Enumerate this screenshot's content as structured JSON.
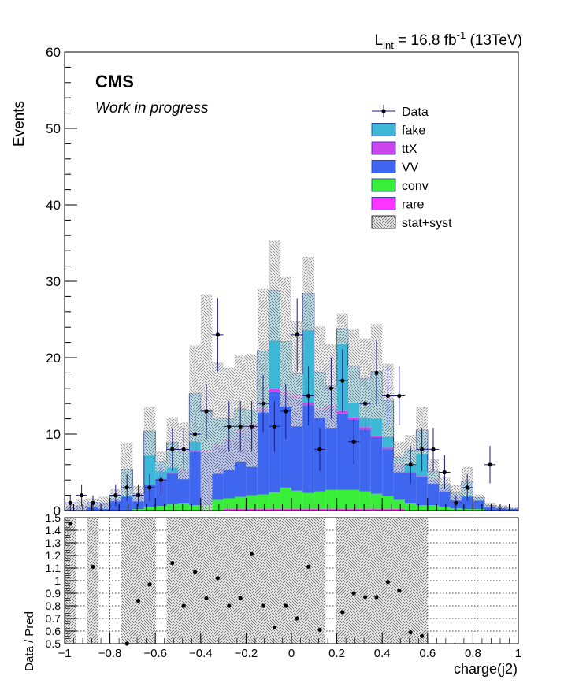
{
  "header": {
    "lumi_prefix": "L",
    "lumi_sub": "int",
    "lumi_value": " = 16.8 fb",
    "lumi_exp": "-1",
    "lumi_energy": " (13TeV)"
  },
  "labels": {
    "cms": "CMS",
    "work": "Work in progress",
    "ylabel_top": "Events",
    "ylabel_bottom": "Data / Pred",
    "xlabel": "charge(j2)"
  },
  "legend": [
    {
      "key": "data",
      "label": "Data"
    },
    {
      "key": "fake",
      "label": "fake",
      "color": "#3cb7d6"
    },
    {
      "key": "ttX",
      "label": "ttX",
      "color": "#cc44ee"
    },
    {
      "key": "VV",
      "label": "VV",
      "color": "#3f66ee"
    },
    {
      "key": "conv",
      "label": "conv",
      "color": "#39ee39"
    },
    {
      "key": "rare",
      "label": "rare",
      "color": "#ff33ff"
    },
    {
      "key": "syst",
      "label": "stat+syst",
      "color": "#aaaaaa"
    }
  ],
  "chart_data": [
    {
      "type": "bar",
      "stacked": true,
      "xlim": [
        -1,
        1
      ],
      "ylim": [
        0,
        60
      ],
      "bins": 40,
      "x_ticks": [
        -1,
        -0.8,
        -0.6,
        -0.4,
        -0.2,
        0,
        0.2,
        0.4,
        0.6,
        0.8,
        1
      ],
      "y_ticks": [
        0,
        10,
        20,
        30,
        40,
        50,
        60
      ],
      "ylabel": "Events",
      "series": [
        {
          "name": "rare",
          "values": [
            0,
            0,
            0,
            0,
            0,
            0,
            0,
            0.1,
            0.1,
            0.1,
            0.1,
            0.1,
            0.1,
            0.1,
            0.2,
            0.2,
            0.2,
            0.2,
            0.2,
            0.2,
            0.2,
            0.2,
            0.2,
            0.2,
            0.2,
            0.2,
            0.2,
            0.2,
            0.2,
            0.2,
            0.1,
            0.1,
            0.1,
            0.1,
            0,
            0,
            0,
            0,
            0,
            0
          ]
        },
        {
          "name": "conv",
          "values": [
            0,
            0,
            0,
            0,
            0,
            0,
            0.2,
            0.4,
            0.5,
            0.7,
            0.8,
            0.6,
            0.6,
            1.3,
            1.4,
            1.6,
            1.8,
            1.9,
            2.2,
            2.8,
            2.4,
            2.1,
            2.3,
            2.5,
            2.5,
            2.5,
            2.3,
            2.0,
            1.7,
            1.2,
            0.8,
            0.6,
            0.6,
            0.4,
            0.3,
            0.2,
            0.2,
            0,
            0,
            0
          ]
        },
        {
          "name": "VV",
          "values": [
            0.5,
            0.6,
            0.8,
            1.0,
            1.5,
            1.8,
            2.0,
            2.8,
            3.5,
            4.0,
            4.3,
            7.0,
            7.0,
            7.0,
            7.6,
            8.5,
            9.0,
            11.0,
            13.1,
            12.2,
            12.2,
            11.5,
            10.7,
            10.8,
            10.0,
            9.2,
            8.1,
            7.4,
            6.1,
            4.5,
            4.0,
            3.7,
            3.4,
            2.4,
            1.7,
            1.6,
            1.1,
            0.7,
            0.5,
            0.3
          ]
        },
        {
          "name": "ttX",
          "values": [
            0,
            0,
            0,
            0,
            0,
            0,
            0,
            0.1,
            0.1,
            0.1,
            0.1,
            0.1,
            0.2,
            0.2,
            0.2,
            0.3,
            0.3,
            0.3,
            0.4,
            0.4,
            0.4,
            0.3,
            0.3,
            0.3,
            0.3,
            0.3,
            0.3,
            0.2,
            0.2,
            0.2,
            0.1,
            0.1,
            0.1,
            0.1,
            0,
            0,
            0,
            0,
            0,
            0
          ]
        },
        {
          "name": "fake",
          "values": [
            0,
            0,
            0.2,
            0,
            0.5,
            3.6,
            0,
            7.0,
            2.2,
            4.0,
            2.5,
            7.5,
            5.2,
            3.5,
            2.6,
            2.7,
            1.8,
            7.5,
            12.9,
            6.5,
            2.7,
            14.3,
            4.6,
            2.5,
            10.8,
            6.7,
            6.4,
            8.4,
            6.2,
            0.9,
            2.9,
            6.0,
            0.9,
            0.4,
            0.3,
            2.0,
            0.4,
            0,
            0,
            0
          ]
        }
      ],
      "syst_band": {
        "name": "stat+syst",
        "values": [
          0.9,
          1.5,
          1.6,
          1.8,
          2.8,
          8.9,
          3.2,
          13.6,
          7.7,
          12.2,
          11.5,
          21.6,
          28.3,
          19.4,
          18.7,
          20.3,
          20.5,
          29.0,
          35.4,
          30.6,
          24.8,
          33.2,
          24.1,
          21.8,
          25.8,
          23.7,
          22.5,
          24.4,
          19.2,
          9.0,
          9.9,
          13.6,
          6.7,
          4.3,
          3.3,
          5.7,
          2.1,
          1.0,
          0.7,
          0.4
        ]
      },
      "data": {
        "name": "Data",
        "values": [
          1,
          2,
          1,
          0,
          2,
          3,
          2,
          3,
          4,
          8,
          8,
          10,
          13,
          23,
          11,
          11,
          11,
          14,
          11,
          13,
          23,
          15,
          8,
          16,
          17,
          9,
          14,
          18,
          15,
          15,
          6,
          8,
          8,
          5,
          1,
          3,
          0,
          6,
          0,
          0
        ]
      }
    },
    {
      "type": "scatter",
      "ylabel": "Data / Pred",
      "xlim": [
        -1,
        1
      ],
      "ylim": [
        0.5,
        1.5
      ],
      "x_ticks": [
        -1,
        -0.8,
        -0.6,
        -0.4,
        -0.2,
        0,
        0.2,
        0.4,
        0.6,
        0.8,
        1
      ],
      "y_ticks": [
        0.5,
        0.6,
        0.7,
        0.8,
        0.9,
        1,
        1.1,
        1.2,
        1.3,
        1.4,
        1.5
      ],
      "ratio": [
        1.45,
        null,
        1.11,
        null,
        null,
        0.5,
        0.84,
        0.97,
        null,
        1.14,
        0.8,
        1.07,
        0.86,
        1.02,
        0.8,
        0.86,
        1.21,
        0.8,
        0.63,
        0.8,
        0.7,
        1.11,
        0.61,
        null,
        0.75,
        0.9,
        0.87,
        0.87,
        0.99,
        0.92,
        0.59,
        0.56,
        null,
        null,
        null,
        null,
        null,
        null,
        null,
        null
      ],
      "band_lo": [
        0.5,
        null,
        0.5,
        null,
        null,
        0.5,
        0.5,
        0.5,
        null,
        0.5,
        0.5,
        0.5,
        0.5,
        0.5,
        0.5,
        0.5,
        0.5,
        0.5,
        0.5,
        0.5,
        0.5,
        0.5,
        0.5,
        null,
        0.5,
        0.5,
        0.5,
        0.5,
        0.5,
        0.5,
        0.5,
        0.5,
        null,
        null,
        null,
        null,
        null,
        null,
        null,
        null
      ],
      "band_hi": [
        1.5,
        null,
        1.5,
        null,
        null,
        1.5,
        1.5,
        1.5,
        null,
        1.5,
        1.5,
        1.5,
        1.5,
        1.5,
        1.5,
        1.5,
        1.5,
        1.5,
        1.5,
        1.5,
        1.5,
        1.5,
        1.5,
        null,
        1.5,
        1.5,
        1.5,
        1.5,
        1.5,
        1.5,
        1.5,
        1.5,
        null,
        null,
        null,
        null,
        null,
        null,
        null,
        null
      ]
    }
  ]
}
